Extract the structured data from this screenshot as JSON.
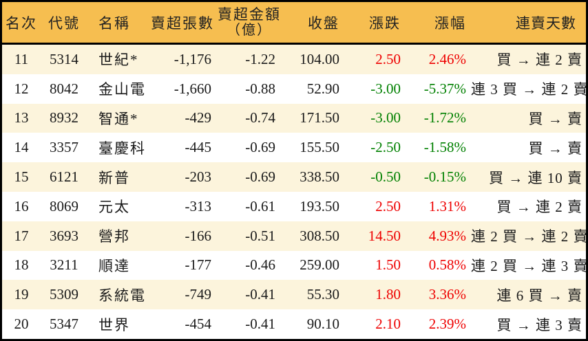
{
  "colors": {
    "header_bg": "#F6BE50",
    "row_alt_bg": "#FCF4DC",
    "up_color": "#EE0000",
    "down_color": "#008000",
    "border_color": "#000000",
    "header_text": "#222222",
    "body_text": "#1a1a1a"
  },
  "chart_data": {
    "type": "table",
    "title": "",
    "columns": [
      {
        "key": "rank",
        "label": "名次"
      },
      {
        "key": "code",
        "label": "代號"
      },
      {
        "key": "name",
        "label": "名稱"
      },
      {
        "key": "sell_volume",
        "label": "賣超張數"
      },
      {
        "key": "sell_amount",
        "label": "賣超金額",
        "label_sub": "（億）"
      },
      {
        "key": "close",
        "label": "收盤"
      },
      {
        "key": "change",
        "label": "漲跌"
      },
      {
        "key": "change_pct",
        "label": "漲幅"
      },
      {
        "key": "streak",
        "label": "連賣天數"
      }
    ],
    "rows": [
      {
        "rank": "11",
        "code": "5314",
        "name": "世紀*",
        "sell_volume": "-1,176",
        "sell_amount": "-1.22",
        "close": "104.00",
        "change": "2.50",
        "change_pct": "2.46%",
        "trend": "up",
        "streak": "買 → 連 2 賣"
      },
      {
        "rank": "12",
        "code": "8042",
        "name": "金山電",
        "sell_volume": "-1,660",
        "sell_amount": "-0.88",
        "close": "52.90",
        "change": "-3.00",
        "change_pct": "-5.37%",
        "trend": "down",
        "streak": "連 3 買 → 連 2 賣"
      },
      {
        "rank": "13",
        "code": "8932",
        "name": "智通*",
        "sell_volume": "-429",
        "sell_amount": "-0.74",
        "close": "171.50",
        "change": "-3.00",
        "change_pct": "-1.72%",
        "trend": "down",
        "streak": "買 → 賣"
      },
      {
        "rank": "14",
        "code": "3357",
        "name": "臺慶科",
        "sell_volume": "-445",
        "sell_amount": "-0.69",
        "close": "155.50",
        "change": "-2.50",
        "change_pct": "-1.58%",
        "trend": "down",
        "streak": "買 → 賣"
      },
      {
        "rank": "15",
        "code": "6121",
        "name": "新普",
        "sell_volume": "-203",
        "sell_amount": "-0.69",
        "close": "338.50",
        "change": "-0.50",
        "change_pct": "-0.15%",
        "trend": "down",
        "streak": "買 → 連 10 賣"
      },
      {
        "rank": "16",
        "code": "8069",
        "name": "元太",
        "sell_volume": "-313",
        "sell_amount": "-0.61",
        "close": "193.50",
        "change": "2.50",
        "change_pct": "1.31%",
        "trend": "up",
        "streak": "買 → 連 2 賣"
      },
      {
        "rank": "17",
        "code": "3693",
        "name": "營邦",
        "sell_volume": "-166",
        "sell_amount": "-0.51",
        "close": "308.50",
        "change": "14.50",
        "change_pct": "4.93%",
        "trend": "up",
        "streak": "連 2 買 → 連 2 賣"
      },
      {
        "rank": "18",
        "code": "3211",
        "name": "順達",
        "sell_volume": "-177",
        "sell_amount": "-0.46",
        "close": "259.00",
        "change": "1.50",
        "change_pct": "0.58%",
        "trend": "up",
        "streak": "連 2 買 → 連 3 賣"
      },
      {
        "rank": "19",
        "code": "5309",
        "name": "系統電",
        "sell_volume": "-749",
        "sell_amount": "-0.41",
        "close": "55.30",
        "change": "1.80",
        "change_pct": "3.36%",
        "trend": "up",
        "streak": "連 6 買 → 賣"
      },
      {
        "rank": "20",
        "code": "5347",
        "name": "世界",
        "sell_volume": "-454",
        "sell_amount": "-0.41",
        "close": "90.10",
        "change": "2.10",
        "change_pct": "2.39%",
        "trend": "up",
        "streak": "買 → 連 3 賣"
      }
    ]
  }
}
